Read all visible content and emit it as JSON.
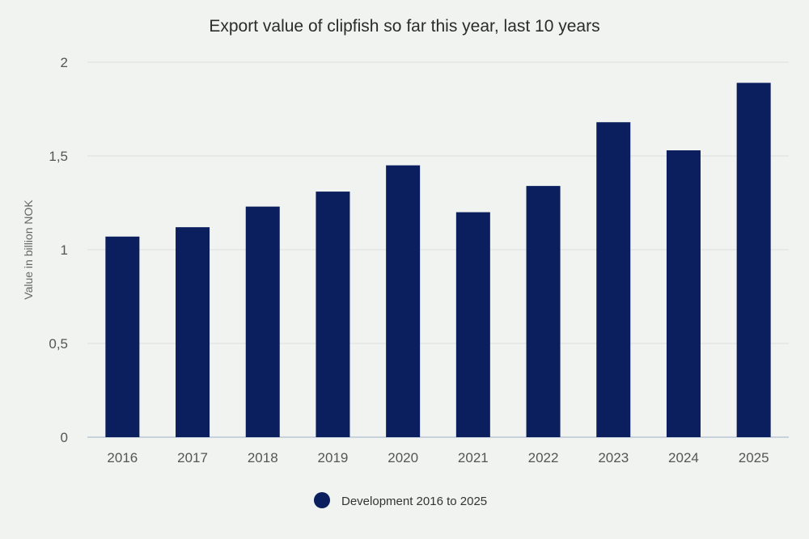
{
  "chart_data": {
    "type": "bar",
    "title": "Export value of clipfish so far this year, last 10 years",
    "ylabel": "Value in billion NOK",
    "xlabel": "",
    "categories": [
      "2016",
      "2017",
      "2018",
      "2019",
      "2020",
      "2021",
      "2022",
      "2023",
      "2024",
      "2025"
    ],
    "series": [
      {
        "name": "Development 2016 to 2025",
        "values": [
          1.07,
          1.12,
          1.23,
          1.31,
          1.45,
          1.2,
          1.34,
          1.68,
          1.53,
          1.89
        ]
      }
    ],
    "ylim": [
      0,
      2
    ],
    "yticks": [
      0,
      0.5,
      1,
      1.5,
      2
    ],
    "ytick_labels": [
      "0",
      "0,5",
      "1",
      "1,5",
      "2"
    ],
    "grid": true,
    "legend_position": "bottom-center",
    "colors": {
      "bar": "#0b1f5e",
      "background": "#f1f3f1"
    }
  }
}
